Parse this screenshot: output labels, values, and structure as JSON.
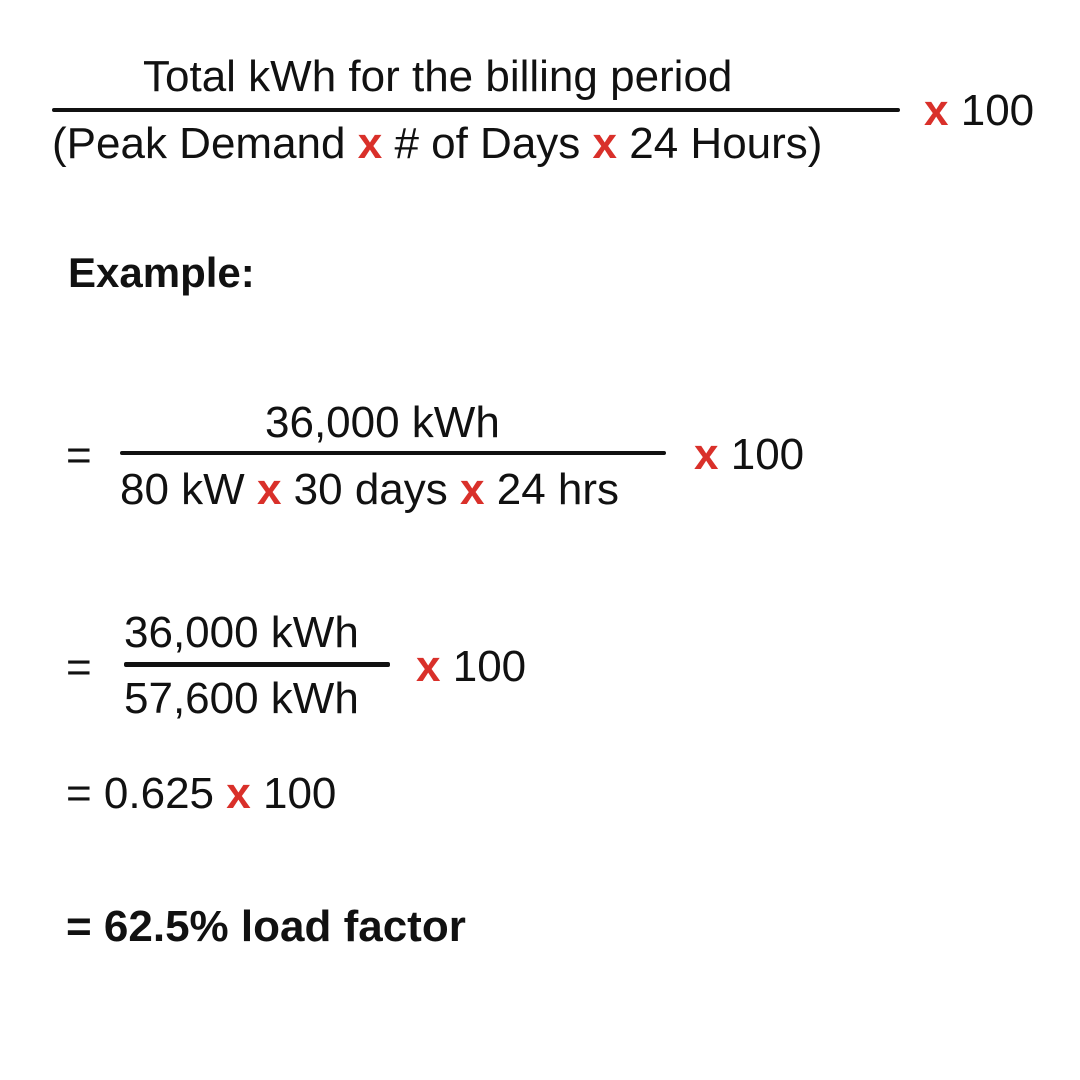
{
  "formula": {
    "numerator": "Total kWh for the billing period",
    "denominator": {
      "part1": "(Peak Demand",
      "times1": "x",
      "part2": "# of Days",
      "times2": "x",
      "part3": "24 Hours)"
    },
    "multiplier": {
      "times": "x",
      "value": "100"
    }
  },
  "example_heading": "Example:",
  "step1": {
    "equals": "=",
    "numerator": "36,000 kWh",
    "denominator": {
      "part1": "80 kW",
      "times1": "x",
      "part2": "30 days",
      "times2": "x",
      "part3": "24 hrs"
    },
    "multiplier": {
      "times": "x",
      "value": "100"
    }
  },
  "step2": {
    "equals": "=",
    "numerator": "36,000 kWh",
    "denominator": "57,600 kWh",
    "multiplier": {
      "times": "x",
      "value": "100"
    }
  },
  "step3": {
    "prefix": "= 0.625",
    "times": "x",
    "value": "100"
  },
  "result": "= 62.5% load factor",
  "colors": {
    "text": "#111111",
    "operator_red": "#d9302a",
    "background": "#ffffff"
  }
}
